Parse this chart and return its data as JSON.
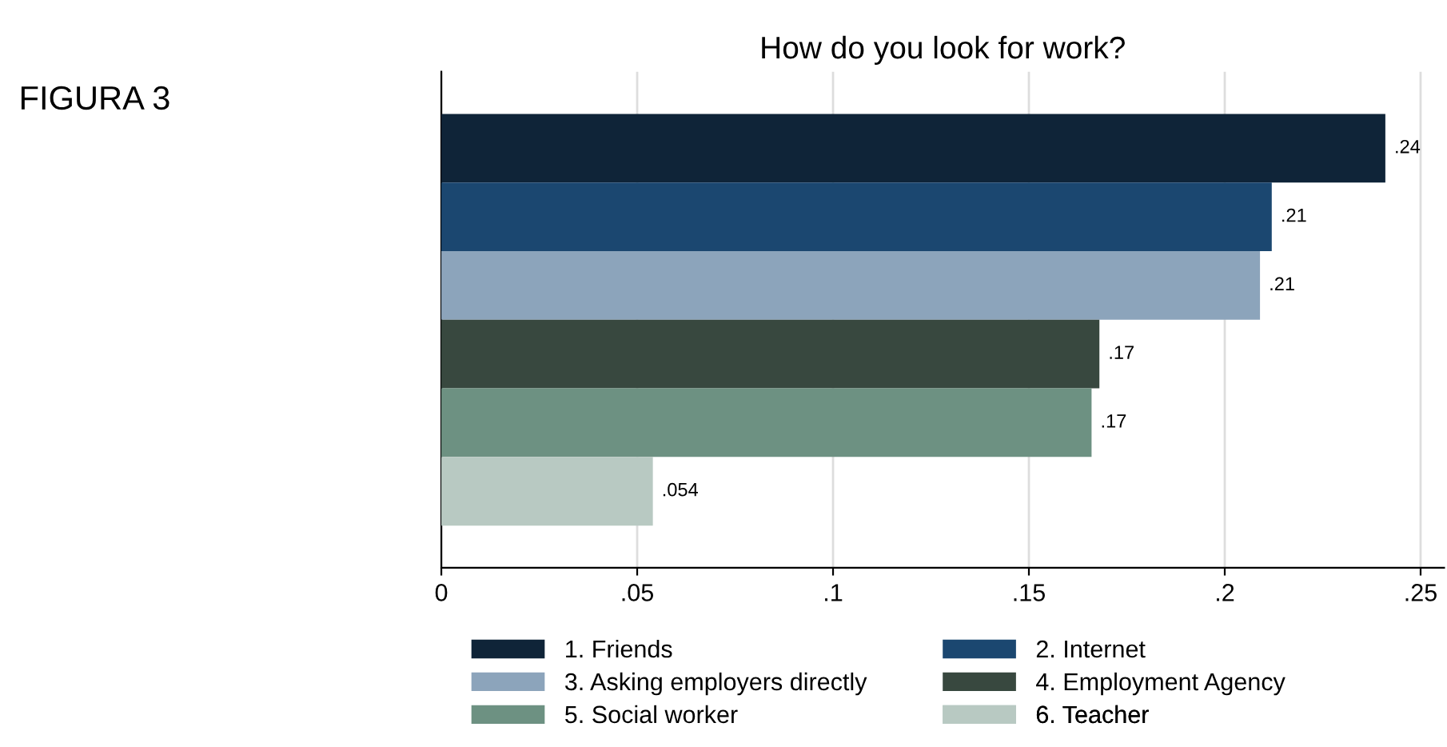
{
  "chart_data": {
    "type": "bar",
    "orientation": "horizontal",
    "title": "How do you look for work?",
    "annotations": [
      "FIGURA 3"
    ],
    "categories": [
      null
    ],
    "series": [
      {
        "name": "1. Friends",
        "color": "#0f2438",
        "values": [
          0.241
        ],
        "value_labels": [
          ".24"
        ]
      },
      {
        "name": "2. Internet",
        "color": "#1b4770",
        "values": [
          0.212
        ],
        "value_labels": [
          ".21"
        ]
      },
      {
        "name": "3. Asking employers directly",
        "color": "#8ca4bb",
        "values": [
          0.209
        ],
        "value_labels": [
          ".21"
        ]
      },
      {
        "name": "4. Employment Agency",
        "color": "#38483f",
        "values": [
          0.168
        ],
        "value_labels": [
          ".17"
        ]
      },
      {
        "name": "5. Social worker",
        "color": "#6d9182",
        "values": [
          0.166
        ],
        "value_labels": [
          ".17"
        ]
      },
      {
        "name": "6. Teacher",
        "color": "#b8c9c2",
        "values": [
          0.054
        ],
        "value_labels": [
          ".054"
        ]
      }
    ],
    "xlim": [
      0,
      0.256
    ],
    "xticks": [
      0,
      {
        "value": 0.05,
        "label": ".05"
      },
      {
        "value": 0.1,
        "label": ".1"
      },
      {
        "value": 0.15,
        "label": ".15"
      },
      {
        "value": 0.2,
        "label": ".2"
      },
      {
        "value": 0.25,
        "label": ".25"
      }
    ],
    "grid": "x",
    "legend": "bottom",
    "tick_labels": "x"
  }
}
